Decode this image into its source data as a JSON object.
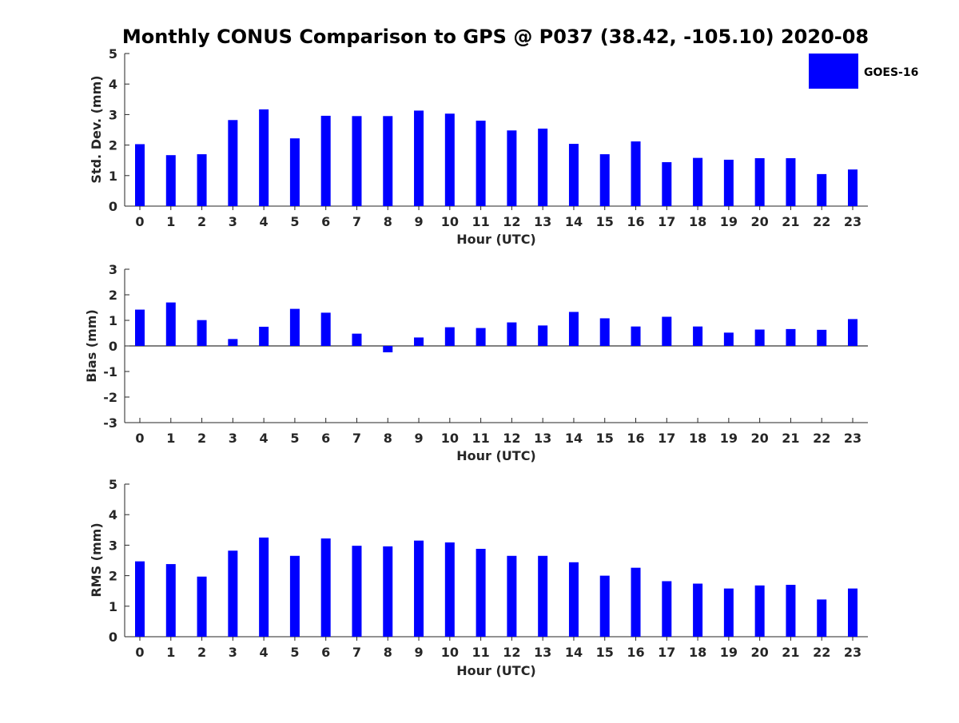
{
  "colors": {
    "bar": "#0000ff",
    "axis": "#262626",
    "background": "#ffffff"
  },
  "chart_data": {
    "type": "bar",
    "title": "Monthly CONUS Comparison to GPS @ P037 (38.42, -105.10) 2020-08",
    "legend": {
      "label": "GOES-16",
      "placement": "top-right"
    },
    "categories": [
      "0",
      "1",
      "2",
      "3",
      "4",
      "5",
      "6",
      "7",
      "8",
      "9",
      "10",
      "11",
      "12",
      "13",
      "14",
      "15",
      "16",
      "17",
      "18",
      "19",
      "20",
      "21",
      "22",
      "23"
    ],
    "panels": [
      {
        "id": "std",
        "xlabel": "Hour (UTC)",
        "ylabel": "Std. Dev. (mm)",
        "ylim": [
          0,
          5
        ],
        "yticks": [
          "0",
          "1",
          "2",
          "3",
          "4",
          "5"
        ],
        "series": [
          {
            "name": "GOES-16",
            "values": [
              2.03,
              1.67,
              1.7,
              2.82,
              3.17,
              2.22,
              2.96,
              2.95,
              2.95,
              3.13,
              3.03,
              2.8,
              2.48,
              2.54,
              2.04,
              1.7,
              2.12,
              1.44,
              1.58,
              1.52,
              1.57,
              1.57,
              1.05,
              1.2
            ]
          }
        ]
      },
      {
        "id": "bias",
        "xlabel": "Hour (UTC)",
        "ylabel": "Bias (mm)",
        "ylim": [
          -3,
          3
        ],
        "yticks": [
          "-3",
          "-2",
          "-1",
          "0",
          "1",
          "2",
          "3"
        ],
        "series": [
          {
            "name": "GOES-16",
            "values": [
              1.42,
              1.7,
              1.01,
              0.27,
              0.75,
              1.45,
              1.3,
              0.48,
              -0.25,
              0.33,
              0.73,
              0.7,
              0.92,
              0.8,
              1.33,
              1.08,
              0.76,
              1.14,
              0.76,
              0.52,
              0.64,
              0.66,
              0.63,
              1.05
            ]
          }
        ]
      },
      {
        "id": "rms",
        "xlabel": "Hour (UTC)",
        "ylabel": "RMS (mm)",
        "ylim": [
          0,
          5
        ],
        "yticks": [
          "0",
          "1",
          "2",
          "3",
          "4",
          "5"
        ],
        "series": [
          {
            "name": "GOES-16",
            "values": [
              2.47,
              2.38,
              1.97,
              2.82,
              3.25,
              2.65,
              3.22,
              2.98,
              2.96,
              3.15,
              3.09,
              2.88,
              2.65,
              2.65,
              2.44,
              2.0,
              2.26,
              1.82,
              1.74,
              1.58,
              1.68,
              1.7,
              1.22,
              1.58
            ]
          }
        ]
      }
    ]
  }
}
